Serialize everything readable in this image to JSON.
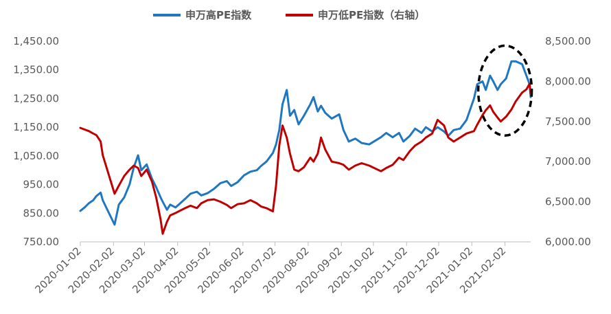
{
  "chart_data": {
    "type": "line",
    "legend_position": "top",
    "grid": false,
    "x_ticks": [
      "2020-01-02",
      "2020-02-02",
      "2020-03-02",
      "2020-04-02",
      "2020-05-02",
      "2020-06-02",
      "2020-07-02",
      "2020-08-02",
      "2020-09-02",
      "2020-10-02",
      "2020-11-02",
      "2020-12-02",
      "2021-01-02",
      "2021-02-02"
    ],
    "y_left": {
      "ylim": [
        750,
        1450
      ],
      "ticks": [
        "750.00",
        "850.00",
        "950.00",
        "1,050.00",
        "1,150.00",
        "1,250.00",
        "1,350.00",
        "1,450.00"
      ]
    },
    "y_right": {
      "ylim": [
        6000,
        8500
      ],
      "ticks": [
        "6,000.00",
        "6,500.00",
        "7,000.00",
        "7,500.00",
        "8,000.00",
        "8,500.00"
      ]
    },
    "series": [
      {
        "name": "申万高PE指数",
        "axis": "left",
        "color": "#1F77C0",
        "points": [
          [
            "2020-01-02",
            858
          ],
          [
            "2020-01-06",
            870
          ],
          [
            "2020-01-10",
            885
          ],
          [
            "2020-01-14",
            895
          ],
          [
            "2020-01-17",
            910
          ],
          [
            "2020-01-21",
            922
          ],
          [
            "2020-01-23",
            895
          ],
          [
            "2020-02-03",
            810
          ],
          [
            "2020-02-07",
            880
          ],
          [
            "2020-02-12",
            905
          ],
          [
            "2020-02-17",
            950
          ],
          [
            "2020-02-21",
            1010
          ],
          [
            "2020-02-25",
            1052
          ],
          [
            "2020-02-28",
            1000
          ],
          [
            "2020-03-04",
            1020
          ],
          [
            "2020-03-09",
            970
          ],
          [
            "2020-03-13",
            940
          ],
          [
            "2020-03-17",
            905
          ],
          [
            "2020-03-19",
            890
          ],
          [
            "2020-03-23",
            862
          ],
          [
            "2020-03-26",
            880
          ],
          [
            "2020-03-31",
            870
          ],
          [
            "2020-04-03",
            880
          ],
          [
            "2020-04-09",
            900
          ],
          [
            "2020-04-14",
            918
          ],
          [
            "2020-04-20",
            925
          ],
          [
            "2020-04-24",
            912
          ],
          [
            "2020-04-30",
            920
          ],
          [
            "2020-05-06",
            935
          ],
          [
            "2020-05-12",
            955
          ],
          [
            "2020-05-18",
            962
          ],
          [
            "2020-05-22",
            945
          ],
          [
            "2020-05-28",
            958
          ],
          [
            "2020-06-03",
            982
          ],
          [
            "2020-06-09",
            995
          ],
          [
            "2020-06-15",
            1000
          ],
          [
            "2020-06-19",
            1015
          ],
          [
            "2020-06-24",
            1030
          ],
          [
            "2020-06-30",
            1060
          ],
          [
            "2020-07-03",
            1090
          ],
          [
            "2020-07-06",
            1140
          ],
          [
            "2020-07-09",
            1230
          ],
          [
            "2020-07-13",
            1280
          ],
          [
            "2020-07-16",
            1190
          ],
          [
            "2020-07-20",
            1210
          ],
          [
            "2020-07-24",
            1160
          ],
          [
            "2020-07-29",
            1190
          ],
          [
            "2020-08-04",
            1230
          ],
          [
            "2020-08-07",
            1255
          ],
          [
            "2020-08-11",
            1205
          ],
          [
            "2020-08-14",
            1225
          ],
          [
            "2020-08-18",
            1200
          ],
          [
            "2020-08-24",
            1180
          ],
          [
            "2020-08-31",
            1195
          ],
          [
            "2020-09-04",
            1140
          ],
          [
            "2020-09-09",
            1100
          ],
          [
            "2020-09-15",
            1110
          ],
          [
            "2020-09-21",
            1095
          ],
          [
            "2020-09-28",
            1090
          ],
          [
            "2020-10-09",
            1115
          ],
          [
            "2020-10-14",
            1130
          ],
          [
            "2020-10-20",
            1115
          ],
          [
            "2020-10-26",
            1130
          ],
          [
            "2020-10-30",
            1100
          ],
          [
            "2020-11-05",
            1120
          ],
          [
            "2020-11-10",
            1145
          ],
          [
            "2020-11-16",
            1130
          ],
          [
            "2020-11-20",
            1150
          ],
          [
            "2020-11-26",
            1135
          ],
          [
            "2020-12-01",
            1150
          ],
          [
            "2020-12-07",
            1135
          ],
          [
            "2020-12-11",
            1120
          ],
          [
            "2020-12-16",
            1140
          ],
          [
            "2020-12-22",
            1145
          ],
          [
            "2020-12-28",
            1175
          ],
          [
            "2021-01-04",
            1250
          ],
          [
            "2021-01-07",
            1300
          ],
          [
            "2021-01-12",
            1310
          ],
          [
            "2021-01-15",
            1280
          ],
          [
            "2021-01-19",
            1330
          ],
          [
            "2021-01-22",
            1310
          ],
          [
            "2021-01-26",
            1280
          ],
          [
            "2021-01-29",
            1300
          ],
          [
            "2021-02-03",
            1320
          ],
          [
            "2021-02-08",
            1380
          ],
          [
            "2021-02-12",
            1380
          ],
          [
            "2021-02-18",
            1370
          ],
          [
            "2021-02-22",
            1330
          ],
          [
            "2021-02-25",
            1300
          ],
          [
            "2021-02-26",
            1255
          ]
        ]
      },
      {
        "name": "申万低PE指数（右轴）",
        "axis": "right",
        "color": "#C00000",
        "points": [
          [
            "2020-01-02",
            7420
          ],
          [
            "2020-01-06",
            7400
          ],
          [
            "2020-01-10",
            7380
          ],
          [
            "2020-01-14",
            7350
          ],
          [
            "2020-01-17",
            7330
          ],
          [
            "2020-01-21",
            7250
          ],
          [
            "2020-01-23",
            7080
          ],
          [
            "2020-02-03",
            6600
          ],
          [
            "2020-02-07",
            6700
          ],
          [
            "2020-02-12",
            6820
          ],
          [
            "2020-02-17",
            6900
          ],
          [
            "2020-02-21",
            6950
          ],
          [
            "2020-02-25",
            6920
          ],
          [
            "2020-02-28",
            6820
          ],
          [
            "2020-03-04",
            6900
          ],
          [
            "2020-03-09",
            6750
          ],
          [
            "2020-03-13",
            6550
          ],
          [
            "2020-03-17",
            6280
          ],
          [
            "2020-03-19",
            6100
          ],
          [
            "2020-03-23",
            6250
          ],
          [
            "2020-03-26",
            6330
          ],
          [
            "2020-03-31",
            6360
          ],
          [
            "2020-04-03",
            6380
          ],
          [
            "2020-04-09",
            6420
          ],
          [
            "2020-04-14",
            6450
          ],
          [
            "2020-04-20",
            6420
          ],
          [
            "2020-04-24",
            6480
          ],
          [
            "2020-04-30",
            6520
          ],
          [
            "2020-05-06",
            6530
          ],
          [
            "2020-05-12",
            6500
          ],
          [
            "2020-05-18",
            6460
          ],
          [
            "2020-05-22",
            6420
          ],
          [
            "2020-05-28",
            6470
          ],
          [
            "2020-06-03",
            6480
          ],
          [
            "2020-06-09",
            6520
          ],
          [
            "2020-06-15",
            6480
          ],
          [
            "2020-06-19",
            6440
          ],
          [
            "2020-06-24",
            6420
          ],
          [
            "2020-06-30",
            6380
          ],
          [
            "2020-07-03",
            6700
          ],
          [
            "2020-07-06",
            7200
          ],
          [
            "2020-07-09",
            7450
          ],
          [
            "2020-07-13",
            7300
          ],
          [
            "2020-07-16",
            7100
          ],
          [
            "2020-07-20",
            6900
          ],
          [
            "2020-07-24",
            6880
          ],
          [
            "2020-07-29",
            6930
          ],
          [
            "2020-08-04",
            7050
          ],
          [
            "2020-08-07",
            7000
          ],
          [
            "2020-08-11",
            7100
          ],
          [
            "2020-08-14",
            7300
          ],
          [
            "2020-08-18",
            7150
          ],
          [
            "2020-08-24",
            7000
          ],
          [
            "2020-08-31",
            6980
          ],
          [
            "2020-09-04",
            6960
          ],
          [
            "2020-09-09",
            6900
          ],
          [
            "2020-09-15",
            6950
          ],
          [
            "2020-09-21",
            6980
          ],
          [
            "2020-09-28",
            6950
          ],
          [
            "2020-10-09",
            6880
          ],
          [
            "2020-10-14",
            6920
          ],
          [
            "2020-10-20",
            6960
          ],
          [
            "2020-10-26",
            7050
          ],
          [
            "2020-10-30",
            7020
          ],
          [
            "2020-11-05",
            7130
          ],
          [
            "2020-11-10",
            7200
          ],
          [
            "2020-11-16",
            7250
          ],
          [
            "2020-11-20",
            7300
          ],
          [
            "2020-11-26",
            7350
          ],
          [
            "2020-12-01",
            7520
          ],
          [
            "2020-12-07",
            7450
          ],
          [
            "2020-12-11",
            7300
          ],
          [
            "2020-12-16",
            7250
          ],
          [
            "2020-12-22",
            7300
          ],
          [
            "2020-12-28",
            7350
          ],
          [
            "2021-01-04",
            7380
          ],
          [
            "2021-01-07",
            7460
          ],
          [
            "2021-01-12",
            7580
          ],
          [
            "2021-01-15",
            7640
          ],
          [
            "2021-01-19",
            7700
          ],
          [
            "2021-01-22",
            7620
          ],
          [
            "2021-01-26",
            7550
          ],
          [
            "2021-01-29",
            7500
          ],
          [
            "2021-02-03",
            7560
          ],
          [
            "2021-02-08",
            7650
          ],
          [
            "2021-02-12",
            7750
          ],
          [
            "2021-02-18",
            7860
          ],
          [
            "2021-02-22",
            7900
          ],
          [
            "2021-02-25",
            7970
          ],
          [
            "2021-02-26",
            7850
          ]
        ]
      }
    ],
    "annotations": [
      {
        "type": "dashed-ellipse",
        "center": [
          "2021-02-02",
          7885
        ],
        "radius_days": 25,
        "radius_value": 560,
        "axis": "right",
        "color": "#000000"
      }
    ]
  }
}
